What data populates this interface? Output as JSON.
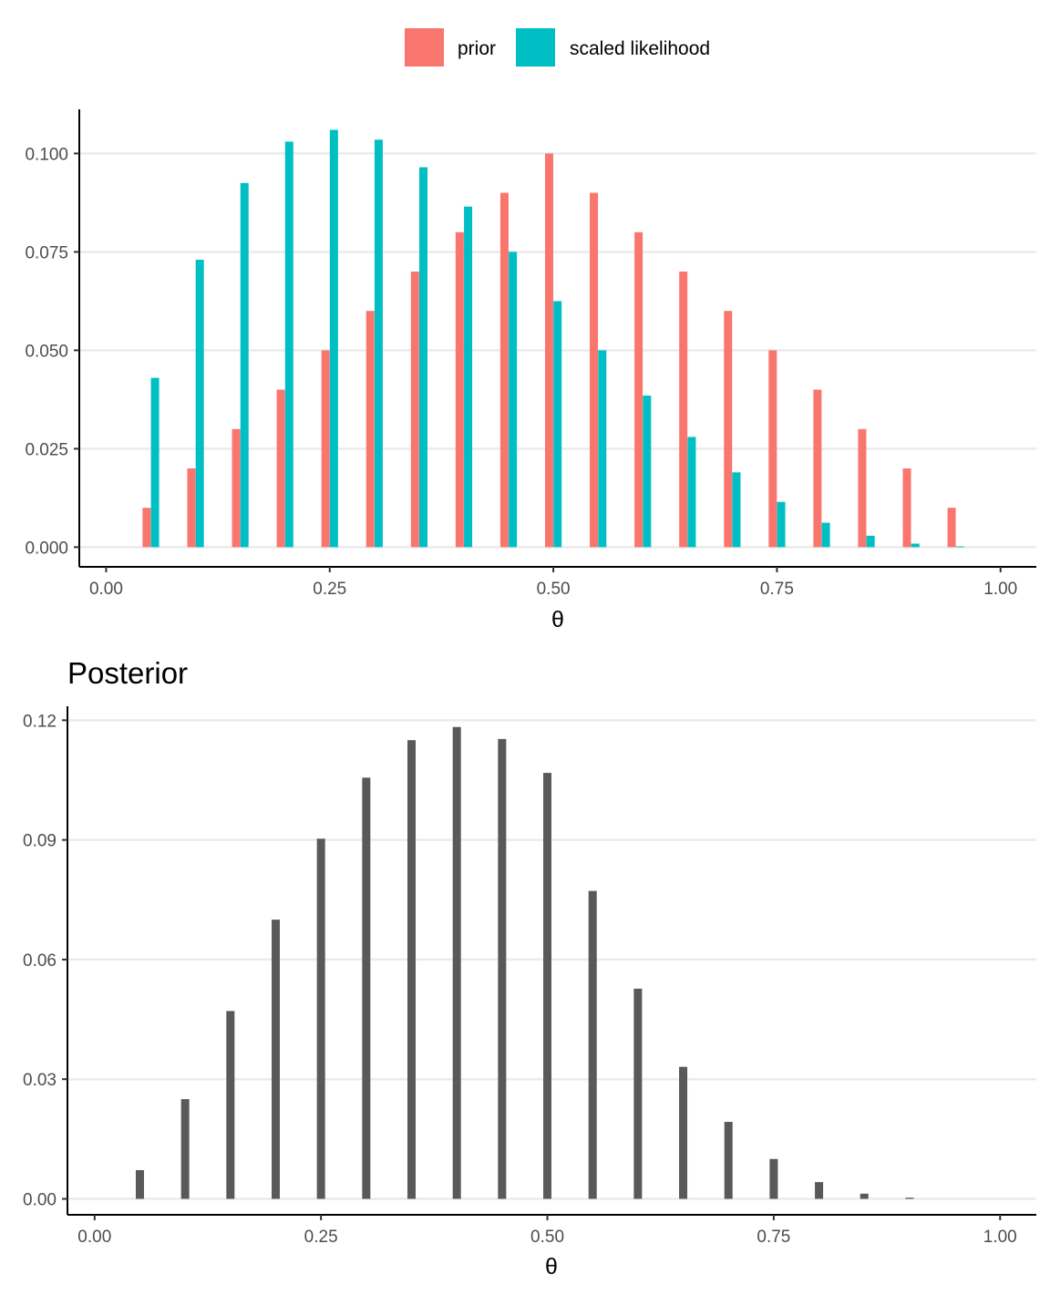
{
  "legend": {
    "items": [
      {
        "label": "prior",
        "color": "#F8766D"
      },
      {
        "label": "scaled likelihood",
        "color": "#00BFC4"
      }
    ]
  },
  "chart_data": [
    {
      "type": "bar",
      "title": "",
      "xlabel": "θ",
      "ylabel": "",
      "xlim": [
        -0.03,
        1.04
      ],
      "ylim": [
        -0.005,
        0.1112
      ],
      "x_ticks": [
        0,
        0.25,
        0.5,
        0.75,
        1
      ],
      "x_tick_labels": [
        "0.00",
        "0.25",
        "0.50",
        "0.75",
        "1.00"
      ],
      "y_ticks": [
        0,
        0.025,
        0.05,
        0.075,
        0.1
      ],
      "y_tick_labels": [
        "0.000",
        "0.025",
        "0.050",
        "0.075",
        "0.100"
      ],
      "x": [
        0.05,
        0.1,
        0.15,
        0.2,
        0.25,
        0.3,
        0.35,
        0.4,
        0.45,
        0.5,
        0.55,
        0.6,
        0.65,
        0.7,
        0.75,
        0.8,
        0.85,
        0.9,
        0.95
      ],
      "series": [
        {
          "name": "prior",
          "color": "#F8766D",
          "values": [
            0.01,
            0.02,
            0.03,
            0.04,
            0.05,
            0.06,
            0.07,
            0.08,
            0.09,
            0.1,
            0.09,
            0.08,
            0.07,
            0.06,
            0.05,
            0.04,
            0.03,
            0.02,
            0.01
          ]
        },
        {
          "name": "scaled likelihood",
          "color": "#00BFC4",
          "values": [
            0.043,
            0.073,
            0.0925,
            0.103,
            0.106,
            0.1035,
            0.0965,
            0.0865,
            0.075,
            0.0625,
            0.05,
            0.0385,
            0.028,
            0.019,
            0.0115,
            0.0062,
            0.0029,
            0.0009,
            0.0002
          ]
        }
      ],
      "grid": "major-y",
      "legend_position": "top"
    },
    {
      "type": "bar",
      "title": "Posterior",
      "xlabel": "θ",
      "ylabel": "",
      "xlim": [
        -0.03,
        1.04
      ],
      "ylim": [
        -0.004,
        0.1235
      ],
      "x_ticks": [
        0,
        0.25,
        0.5,
        0.75,
        1
      ],
      "x_tick_labels": [
        "0.00",
        "0.25",
        "0.50",
        "0.75",
        "1.00"
      ],
      "y_ticks": [
        0,
        0.03,
        0.06,
        0.09,
        0.12
      ],
      "y_tick_labels": [
        "0.00",
        "0.03",
        "0.06",
        "0.09",
        "0.12"
      ],
      "x": [
        0.05,
        0.1,
        0.15,
        0.2,
        0.25,
        0.3,
        0.35,
        0.4,
        0.45,
        0.5,
        0.55,
        0.6,
        0.65,
        0.7,
        0.75,
        0.8,
        0.85,
        0.9
      ],
      "series": [
        {
          "color": "#595959",
          "values": [
            0.0072,
            0.025,
            0.0471,
            0.07,
            0.0903,
            0.1056,
            0.115,
            0.1183,
            0.1153,
            0.1068,
            0.0772,
            0.0527,
            0.0331,
            0.0193,
            0.01,
            0.0042,
            0.0013,
            0.0003
          ]
        }
      ],
      "grid": "major-y"
    }
  ]
}
